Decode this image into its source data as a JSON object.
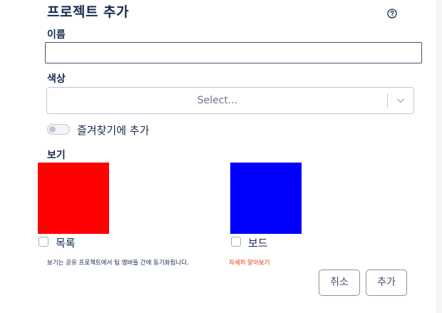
{
  "dialog": {
    "title": "프로젝트 추가",
    "help_icon": "question-circle-icon"
  },
  "name_field": {
    "label": "이름",
    "value": "",
    "placeholder": ""
  },
  "color_field": {
    "label": "색상",
    "placeholder": "Select...",
    "chevron_icon": "chevron-down-icon"
  },
  "favorite_toggle": {
    "label": "즐겨찾기에 추가",
    "checked": false
  },
  "view_section": {
    "label": "보기",
    "options": [
      {
        "label": "목록",
        "color": "#ff0000",
        "checked": false
      },
      {
        "label": "보드",
        "color": "#0000ff",
        "checked": false
      }
    ]
  },
  "footnote": {
    "text": "보기는 공유 프로젝트에서 팀 멤버들 간에 동기화됩니다.",
    "link": "자세히 알아보기"
  },
  "buttons": {
    "cancel": "취소",
    "add": "추가"
  },
  "colors": {
    "accent_link": "#de350b",
    "text": "#172b4d",
    "border": "#c1c7d0"
  }
}
